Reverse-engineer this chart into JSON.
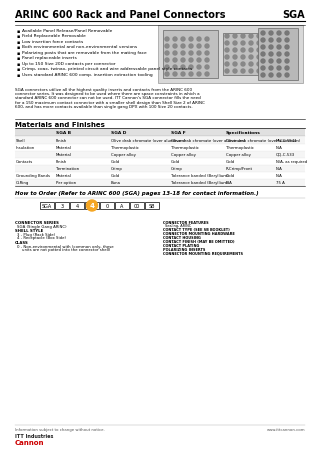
{
  "title": "ARINC 600 Rack and Panel Connectors",
  "title_right": "SGA",
  "bg_color": "#ffffff",
  "text_color": "#000000",
  "bullet_points": [
    "Available Panel Release/Panel Removable",
    "Field Replaceable Removable",
    "Low insertion force contacts",
    "Both environmental and non-environmental versions",
    "Polarizing posts that are removable from the mating face",
    "Panel replaceable inserts",
    "Up to 150 Size 20D contacts per connector",
    "Crimp, coax, twinax, printed circuit and wire addressable panel style contacts",
    "Uses standard ARINC 600 comp. insertion extraction tooling"
  ],
  "description": "SGA connectors utilize all the highest quality inserts and contacts from the ARINC 600 connector series. It was designed to be used where there are space constraints in which a standard ARINC 600 connector can not be used. ITT Cannon's SGA connector fills the need for a 150 maximum contact connector with a smaller shell design than Shell Size 2 of ARINC 600, and has more contacts available than single gang DPX with 100 Size 20 contacts.",
  "materials_title": "Materials and Finishes",
  "how_to_order_title": "How to Order (Refer to ARINC 600 (SGA) pages 13-18 for contact information.)",
  "table_headers": [
    "",
    "SGA B",
    "SGA D",
    "SGA F",
    "Specifications"
  ],
  "table_rows": [
    [
      "Shell",
      "Finish",
      "Olive drab chromate (over aluminum)",
      "Olive drab chromate (over aluminum)",
      "Olive drab chromate (over aluminum)",
      "MIL-C-5541"
    ],
    [
      "Insulation",
      "Material",
      "Thermoplastic",
      "Thermoplastic",
      "Thermoplastic",
      "N/A"
    ],
    [
      "",
      "Material",
      "Copper alloy",
      "Copper alloy",
      "Copper alloy",
      "QQ-C-533"
    ],
    [
      "Contacts",
      "Finish",
      "Gold",
      "Gold",
      "Gold",
      "N/A, as required"
    ],
    [
      "",
      "Termination",
      "Crimp",
      "Crimp",
      "R-Crimp/Front",
      "N/A"
    ],
    [
      "Grounding Bands",
      "Material",
      "Gold",
      "Tolerance banded (Beryllium)",
      "Gold",
      "N/A"
    ],
    [
      "O-Ring",
      "Per option",
      "Buna",
      "Tolerance banded (Beryllium)",
      "N/A",
      "75 A"
    ]
  ],
  "orange_circle_color": "#f5a623",
  "footer_text": "Information subject to change without notice.",
  "footer_url": "www.ittcannon.com",
  "logo_text": "ITT Industries",
  "logo_sub": "Cannon"
}
